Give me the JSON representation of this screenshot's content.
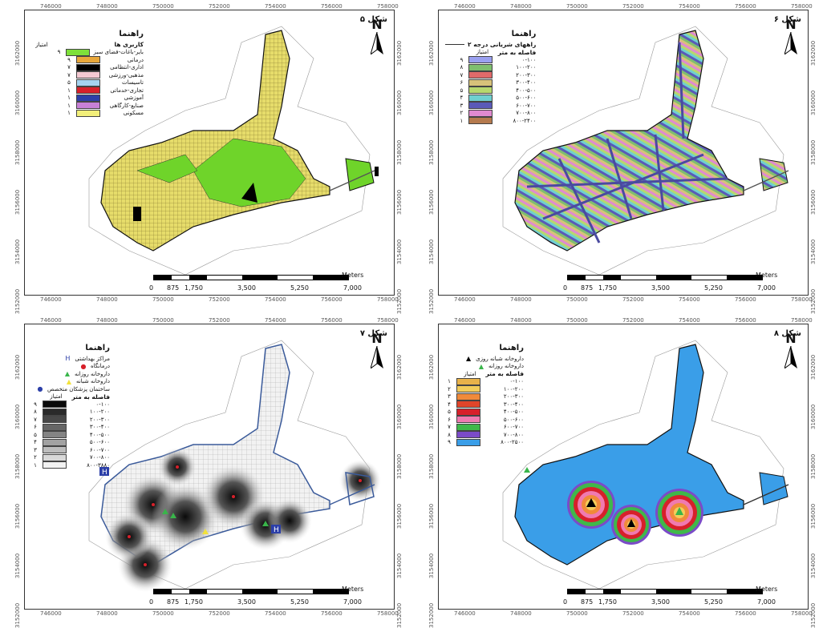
{
  "x_ticks": [
    "746000",
    "748000",
    "750000",
    "752000",
    "754000",
    "756000",
    "758000"
  ],
  "y_ticks": [
    "3162000",
    "3160000",
    "3158000",
    "3156000",
    "3154000",
    "3152000"
  ],
  "north_label": "N",
  "scale": {
    "unit": "Meters",
    "labels": [
      "0",
      "875",
      "1,750",
      "3,500",
      "5,250",
      "7,000"
    ]
  },
  "panels": {
    "p5": {
      "title": "شکل ۵",
      "legend_title": "راهنما",
      "subtitle": "کاربری ها",
      "score_header": "امتیاز",
      "items": [
        {
          "label": "بایر-باغات-فضای سبز",
          "score": "۹",
          "color": "#7ee03a"
        },
        {
          "label": "درمانی",
          "score": "۹",
          "color": "#e8a73a"
        },
        {
          "label": "اداری-انتظامی",
          "score": "۷",
          "color": "#000000"
        },
        {
          "label": "مذهبی-ورزشی",
          "score": "۷",
          "color": "#f4c9d2"
        },
        {
          "label": "تاسیسات",
          "score": "۵",
          "color": "#a6d3f0"
        },
        {
          "label": "تجاری-خدماتی",
          "score": "۱",
          "color": "#d7202a"
        },
        {
          "label": "آموزشی",
          "score": "۱",
          "color": "#2c3fa8"
        },
        {
          "label": "صنایع-کارگاهی",
          "score": "۱",
          "color": "#c780d6"
        },
        {
          "label": "مسکونی",
          "score": "۱",
          "color": "#f2ef7a"
        }
      ]
    },
    "p6": {
      "title": "شکل ۶",
      "legend_title": "راهنما",
      "line_label": "راههای شریانی درجه ۲",
      "distance_header": "فاصله به متر",
      "score_header": "امتیاز",
      "items": [
        {
          "label": "۰-۱۰۰",
          "score": "۹",
          "color": "#9aa0f0"
        },
        {
          "label": "۱۰۰-۲۰۰",
          "score": "۸",
          "color": "#7fbf6e"
        },
        {
          "label": "۲۰۰-۳۰۰",
          "score": "۷",
          "color": "#e06a6a"
        },
        {
          "label": "۳۰۰-۴۰۰",
          "score": "۶",
          "color": "#d7c27a"
        },
        {
          "label": "۴۰۰-۵۰۰",
          "score": "۵",
          "color": "#b7d86e"
        },
        {
          "label": "۵۰۰-۶۰۰",
          "score": "۴",
          "color": "#6fd0d0"
        },
        {
          "label": "۶۰۰-۷۰۰",
          "score": "۳",
          "color": "#5a5ab8"
        },
        {
          "label": "۷۰۰-۸۰۰",
          "score": "۲",
          "color": "#e08ad0"
        },
        {
          "label": "۸۰۰-۲۴۰۰",
          "score": "۱",
          "color": "#b57a4e"
        }
      ]
    },
    "p7": {
      "title": "شکل ۷",
      "legend_title": "راهنما",
      "distance_header": "فاصله به متر",
      "score_header": "امتیاز",
      "symbols": [
        {
          "label": "مراکز بهداشتی",
          "glyph": "H",
          "color": "#2c3fa8"
        },
        {
          "label": "درمانگاه",
          "glyph": "●",
          "color": "#d7202a"
        },
        {
          "label": "داروخانه روزانه",
          "glyph": "▲",
          "color": "#39b54a"
        },
        {
          "label": "داروخانه شبانه",
          "glyph": "▲",
          "color": "#f2e23a"
        },
        {
          "label": "ساختمان پزشکان متخصص",
          "glyph": "●",
          "color": "#2c3fa8"
        }
      ],
      "items": [
        {
          "label": "۰-۱۰۰",
          "score": "۹",
          "color": "#0a0a0a"
        },
        {
          "label": "۱۰۰-۲۰۰",
          "score": "۸",
          "color": "#2a2a2a"
        },
        {
          "label": "۲۰۰-۳۰۰",
          "score": "۷",
          "color": "#484848"
        },
        {
          "label": "۳۰۰-۴۰۰",
          "score": "۶",
          "color": "#666666"
        },
        {
          "label": "۴۰۰-۵۰۰",
          "score": "۵",
          "color": "#848484"
        },
        {
          "label": "۵۰۰-۶۰۰",
          "score": "۴",
          "color": "#a2a2a2"
        },
        {
          "label": "۶۰۰-۷۰۰",
          "score": "۳",
          "color": "#bdbdbd"
        },
        {
          "label": "۷۰۰-۸۰۰",
          "score": "۲",
          "color": "#d8d8d8"
        },
        {
          "label": "۸۰۰-۳۸۸۰",
          "score": "۱",
          "color": "#f2f2f2"
        }
      ]
    },
    "p8": {
      "title": "شکل ۸",
      "legend_title": "راهنما",
      "distance_header": "فاصله به متر",
      "score_header": "امتیاز",
      "symbols": [
        {
          "label": "داروخانه شبانه روزی",
          "glyph": "▲",
          "color": "#000000"
        },
        {
          "label": "داروخانه روزانه",
          "glyph": "▲",
          "color": "#39b54a"
        }
      ],
      "items": [
        {
          "label": "۰-۱۰۰",
          "score": "۱",
          "color": "#e8b24a"
        },
        {
          "label": "۱۰۰-۲۰۰",
          "score": "۲",
          "color": "#f2cc5a"
        },
        {
          "label": "۲۰۰-۳۰۰",
          "score": "۳",
          "color": "#f08a3a"
        },
        {
          "label": "۳۰۰-۴۰۰",
          "score": "۴",
          "color": "#e0452a"
        },
        {
          "label": "۴۰۰-۵۰۰",
          "score": "۵",
          "color": "#d7202a"
        },
        {
          "label": "۵۰۰-۶۰۰",
          "score": "۶",
          "color": "#f07ab0"
        },
        {
          "label": "۶۰۰-۷۰۰",
          "score": "۷",
          "color": "#3fb84a"
        },
        {
          "label": "۷۰۰-۸۰۰",
          "score": "۸",
          "color": "#7b4bc8"
        },
        {
          "label": "۸۰۰-۲۵۰۰",
          "score": "۹",
          "color": "#3a9ee8"
        }
      ]
    }
  }
}
